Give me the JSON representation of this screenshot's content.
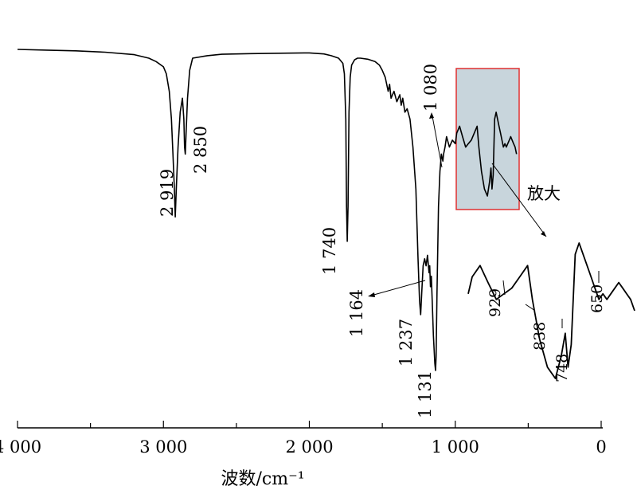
{
  "chart_data": {
    "type": "line",
    "xlabel": "波数/cm⁻¹",
    "xlim": [
      4000,
      0
    ],
    "x_ticks": [
      {
        "value": 4000,
        "label": "4 000"
      },
      {
        "value": 3000,
        "label": "3 000"
      },
      {
        "value": 2000,
        "label": "2 000"
      },
      {
        "value": 1000,
        "label": "1 000"
      },
      {
        "value": 0,
        "label": "0"
      }
    ],
    "annotations": [
      {
        "value": 2919,
        "label": "2 919"
      },
      {
        "value": 2850,
        "label": "2 850"
      },
      {
        "value": 1740,
        "label": "1 740"
      },
      {
        "value": 1237,
        "label": "1 237"
      },
      {
        "value": 1164,
        "label": "1 164"
      },
      {
        "value": 1131,
        "label": "1 131"
      },
      {
        "value": 1080,
        "label": "1 080"
      }
    ],
    "zoom_label": "放大",
    "zoom_region": [
      1000,
      580
    ],
    "inset_annotations": [
      {
        "value": 929,
        "label": "929"
      },
      {
        "value": 838,
        "label": "838"
      },
      {
        "value": 748,
        "label": "748"
      },
      {
        "value": 650,
        "label": "650"
      }
    ],
    "highlight_color": "#c8d5dc",
    "highlight_border": "#e03030",
    "series": [
      {
        "x": [
          4000,
          3800,
          3600,
          3400,
          3200,
          3100,
          3050,
          3000,
          2980,
          2960,
          2945,
          2935,
          2925,
          2919,
          2912,
          2900,
          2885,
          2870,
          2860,
          2855,
          2850,
          2845,
          2835,
          2820,
          2800,
          2700,
          2600,
          2400,
          2200,
          2000,
          1900,
          1850,
          1800,
          1770,
          1760,
          1750,
          1745,
          1740,
          1735,
          1728,
          1720,
          1710,
          1690,
          1670,
          1650,
          1600,
          1550,
          1520,
          1500,
          1480,
          1460,
          1450,
          1440,
          1420,
          1400,
          1380,
          1370,
          1360,
          1345,
          1330,
          1310,
          1290,
          1270,
          1255,
          1245,
          1237,
          1230,
          1220,
          1210,
          1200,
          1190,
          1180,
          1175,
          1170,
          1164,
          1158,
          1150,
          1140,
          1135,
          1131,
          1125,
          1115,
          1105,
          1095,
          1085,
          1080,
          1070,
          1060,
          1040,
          1020,
          1000,
          990,
          970,
          950,
          929,
          910,
          890,
          870,
          850,
          838,
          820,
          800,
          780,
          765,
          755,
          748,
          740,
          730,
          720,
          710,
          700,
          690,
          680,
          670,
          660,
          650,
          640,
          630,
          620,
          610,
          600,
          590,
          580
        ],
        "y": [
          100,
          99.8,
          99.6,
          99.2,
          98.5,
          97.5,
          96.5,
          95,
          93,
          88,
          80,
          70,
          60,
          52,
          60,
          72,
          82,
          86,
          80,
          72,
          70,
          76,
          86,
          94,
          97.5,
          98.2,
          98.6,
          98.8,
          98.9,
          99,
          98.7,
          98.2,
          97.5,
          96,
          93,
          80,
          55,
          45,
          55,
          82,
          92,
          95.5,
          97,
          97.5,
          97.5,
          97.2,
          96.5,
          95.5,
          94,
          92,
          88,
          90,
          86,
          88,
          85,
          87,
          84,
          86,
          82,
          83,
          80,
          72,
          60,
          40,
          28,
          24,
          30,
          38,
          40,
          38,
          41,
          36,
          38,
          32,
          35,
          28,
          18,
          10,
          8,
          12,
          30,
          55,
          65,
          70,
          68,
          70,
          72,
          75,
          72,
          74,
          73,
          76,
          78,
          75,
          72,
          73,
          74,
          76,
          78,
          72,
          65,
          60,
          58,
          62,
          66,
          60,
          64,
          80,
          82,
          80,
          78,
          76,
          74,
          72,
          73,
          72,
          73,
          74,
          75,
          74,
          73,
          72,
          70
        ]
      }
    ]
  }
}
